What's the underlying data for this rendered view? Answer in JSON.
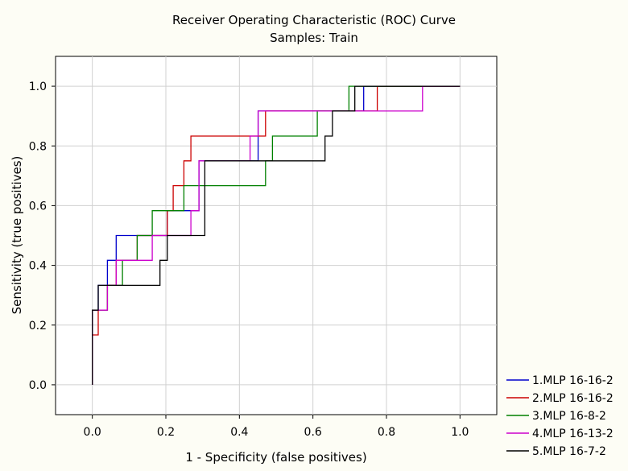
{
  "chart_data": {
    "type": "line",
    "title": "Receiver Operating Characteristic (ROC) Curve",
    "subtitle": "Samples: Train",
    "xlabel": "1 - Specificity (false positives)",
    "ylabel": "Sensitivity (true positives)",
    "xlim": [
      -0.1,
      1.1
    ],
    "ylim": [
      -0.1,
      1.1
    ],
    "xticks": [
      "0.0",
      "0.2",
      "0.4",
      "0.6",
      "0.8",
      "1.0"
    ],
    "yticks": [
      "0.0",
      "0.2",
      "0.4",
      "0.6",
      "0.8",
      "1.0"
    ],
    "grid": true,
    "legend_position": "bottom-right",
    "series": [
      {
        "name": "1.MLP 16-16-2",
        "color": "#0000cc",
        "x": [
          0.0,
          0.0,
          0.016,
          0.016,
          0.041,
          0.041,
          0.065,
          0.065,
          0.163,
          0.163,
          0.204,
          0.204,
          0.268,
          0.268,
          0.29,
          0.29,
          0.391,
          0.391,
          0.451,
          0.451,
          0.667,
          0.667,
          0.738,
          0.738,
          1.0
        ],
        "y": [
          0.0,
          0.25,
          0.25,
          0.333,
          0.333,
          0.417,
          0.417,
          0.5,
          0.5,
          0.5,
          0.5,
          0.583,
          0.583,
          0.583,
          0.583,
          0.75,
          0.75,
          0.75,
          0.75,
          0.917,
          0.917,
          0.917,
          0.917,
          1.0,
          1.0
        ]
      },
      {
        "name": "2.MLP 16-16-2",
        "color": "#cc0000",
        "x": [
          0.0,
          0.0,
          0.016,
          0.016,
          0.041,
          0.041,
          0.065,
          0.065,
          0.122,
          0.122,
          0.204,
          0.204,
          0.22,
          0.22,
          0.249,
          0.249,
          0.268,
          0.268,
          0.471,
          0.471,
          0.775,
          0.775,
          1.0
        ],
        "y": [
          0.0,
          0.167,
          0.167,
          0.25,
          0.25,
          0.333,
          0.333,
          0.417,
          0.417,
          0.5,
          0.5,
          0.583,
          0.583,
          0.667,
          0.667,
          0.75,
          0.75,
          0.833,
          0.833,
          0.917,
          0.917,
          1.0,
          1.0
        ]
      },
      {
        "name": "3.MLP 16-8-2",
        "color": "#008000",
        "x": [
          0.0,
          0.0,
          0.041,
          0.041,
          0.082,
          0.082,
          0.122,
          0.122,
          0.163,
          0.163,
          0.249,
          0.249,
          0.471,
          0.471,
          0.49,
          0.49,
          0.612,
          0.612,
          0.698,
          0.698,
          1.0
        ],
        "y": [
          0.0,
          0.25,
          0.25,
          0.333,
          0.333,
          0.417,
          0.417,
          0.5,
          0.5,
          0.583,
          0.583,
          0.667,
          0.667,
          0.75,
          0.75,
          0.833,
          0.833,
          0.917,
          0.917,
          1.0,
          1.0
        ]
      },
      {
        "name": "4.MLP 16-13-2",
        "color": "#cc00cc",
        "x": [
          0.0,
          0.0,
          0.041,
          0.041,
          0.065,
          0.065,
          0.163,
          0.163,
          0.22,
          0.22,
          0.268,
          0.268,
          0.29,
          0.29,
          0.429,
          0.429,
          0.451,
          0.451,
          0.898,
          0.898,
          1.0
        ],
        "y": [
          0.0,
          0.25,
          0.25,
          0.333,
          0.333,
          0.417,
          0.417,
          0.5,
          0.5,
          0.5,
          0.5,
          0.583,
          0.583,
          0.75,
          0.75,
          0.833,
          0.833,
          0.917,
          0.917,
          1.0,
          1.0
        ]
      },
      {
        "name": "5.MLP 16-7-2",
        "color": "#000000",
        "x": [
          0.0,
          0.0,
          0.016,
          0.016,
          0.184,
          0.184,
          0.204,
          0.204,
          0.306,
          0.306,
          0.633,
          0.633,
          0.653,
          0.653,
          0.714,
          0.714,
          1.0
        ],
        "y": [
          0.0,
          0.25,
          0.25,
          0.333,
          0.333,
          0.417,
          0.417,
          0.5,
          0.5,
          0.75,
          0.75,
          0.833,
          0.833,
          0.917,
          0.917,
          1.0,
          1.0
        ]
      }
    ]
  }
}
